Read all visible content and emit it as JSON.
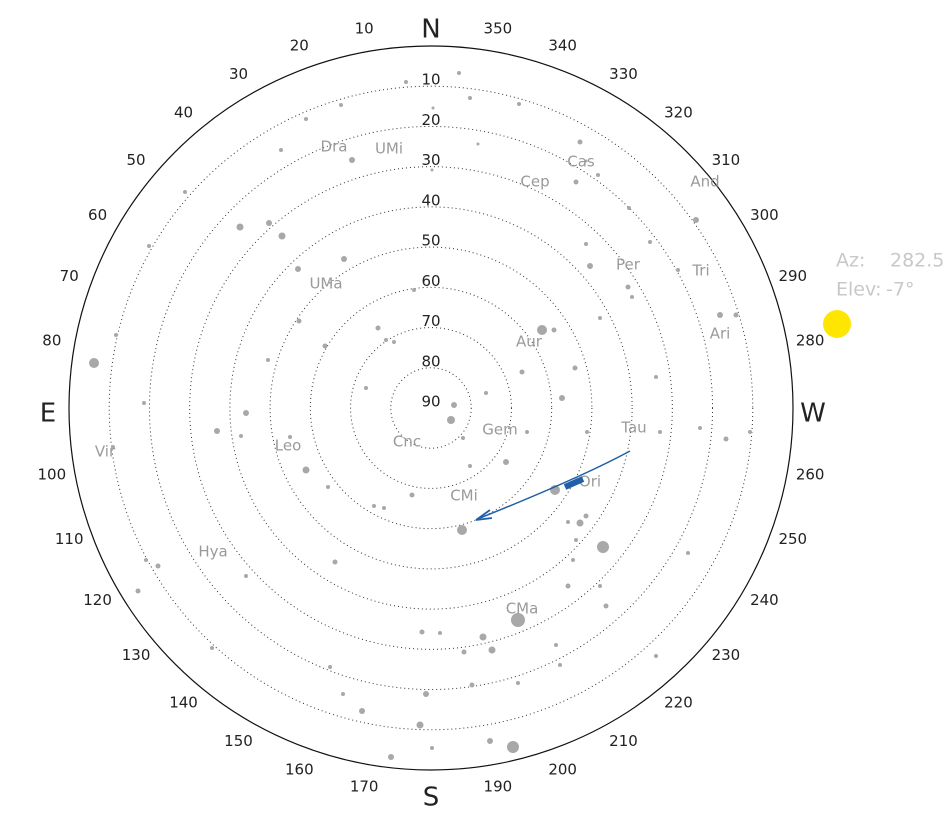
{
  "compass": {
    "cardinals": [
      "N",
      "E",
      "S",
      "W"
    ],
    "azimuth_labels": [
      10,
      20,
      30,
      40,
      50,
      60,
      70,
      80,
      100,
      110,
      120,
      130,
      140,
      150,
      160,
      170,
      190,
      200,
      210,
      220,
      230,
      240,
      250,
      260,
      280,
      290,
      300,
      310,
      320,
      330,
      340,
      350
    ],
    "elevation_labels": [
      10,
      20,
      30,
      40,
      50,
      60,
      70,
      80,
      90
    ]
  },
  "constellations": [
    "Dra",
    "UMi",
    "Cas",
    "Cep",
    "And",
    "Tri",
    "Per",
    "UMa",
    "Ari",
    "Aur",
    "Gem",
    "Tau",
    "Cnc",
    "Leo",
    "Vir",
    "CMi",
    "Ori",
    "Hya",
    "CMa"
  ],
  "sun_readout": {
    "az_label": "Az:",
    "az_value": 282.5,
    "elev_label": "Elev:",
    "elev_value": "-7°"
  }
}
